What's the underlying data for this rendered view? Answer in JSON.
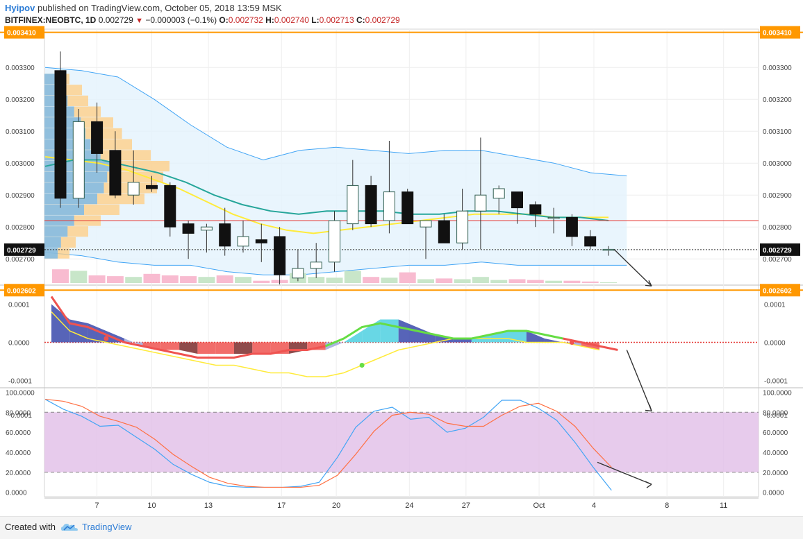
{
  "header": {
    "author": "Hyipov",
    "published": "published on TradingView.com, October 05, 2018 13:59 MSK",
    "symbol": "BITFINEX:NEOBTC, 1D",
    "last": "0.002729",
    "change": "−0.000003 (−0.1%)",
    "o_label": "O:",
    "o_value": "0.002732",
    "h_label": "H:",
    "h_value": "0.002740",
    "l_label": "L:",
    "l_value": "0.002713",
    "c_label": "C:",
    "c_value": "0.002729"
  },
  "footer": {
    "created": "Created with",
    "brand": "TradingView",
    "logo_icon": "tradingview-cloud-icon"
  },
  "colors": {
    "orange_line": "#ff9800",
    "red_line": "#e53935",
    "ma_yellow": "#ffeb3b",
    "ma_teal": "#26a69a",
    "bb_blue": "#42a5f5",
    "bb_fill": "#e3f2fd",
    "vp_blue": "#64b5f6",
    "vp_orange": "#ffcc80",
    "vol_up": "#c8e6c9",
    "vol_down": "#f8bbd0",
    "rsi_band": "#e1bee7",
    "stoch_k": "#42a5f5",
    "stoch_d": "#ff7043"
  },
  "chart_data": [
    {
      "type": "candlestick",
      "pane": "price",
      "x_ticks": [
        "7",
        "10",
        "13",
        "17",
        "20",
        "24",
        "27",
        "Oct",
        "4",
        "8",
        "11"
      ],
      "y_ticks": [
        "0.003300",
        "0.003200",
        "0.003100",
        "0.003000",
        "0.002900",
        "0.002800",
        "0.002700"
      ],
      "ylim": [
        0.00262,
        0.00342
      ],
      "horizontal_levels": [
        {
          "value": 0.00341,
          "label": "0.003410"
        },
        {
          "value": 0.002602,
          "label": "0.002602"
        }
      ],
      "red_level": 0.00282,
      "last_price_label": "0.002729",
      "candles": [
        {
          "o": 0.00329,
          "h": 0.00335,
          "l": 0.00286,
          "c": 0.00289
        },
        {
          "o": 0.00289,
          "h": 0.00317,
          "l": 0.00286,
          "c": 0.00313
        },
        {
          "o": 0.00313,
          "h": 0.00319,
          "l": 0.00297,
          "c": 0.00303
        },
        {
          "o": 0.00304,
          "h": 0.0031,
          "l": 0.00289,
          "c": 0.0029
        },
        {
          "o": 0.0029,
          "h": 0.00304,
          "l": 0.00287,
          "c": 0.00294
        },
        {
          "o": 0.00293,
          "h": 0.00296,
          "l": 0.00291,
          "c": 0.00292
        },
        {
          "o": 0.00293,
          "h": 0.00294,
          "l": 0.00277,
          "c": 0.0028
        },
        {
          "o": 0.00281,
          "h": 0.00282,
          "l": 0.0027,
          "c": 0.00278
        },
        {
          "o": 0.00279,
          "h": 0.00281,
          "l": 0.00272,
          "c": 0.0028
        },
        {
          "o": 0.00281,
          "h": 0.00286,
          "l": 0.00271,
          "c": 0.00274
        },
        {
          "o": 0.00274,
          "h": 0.00282,
          "l": 0.00272,
          "c": 0.00277
        },
        {
          "o": 0.00276,
          "h": 0.00281,
          "l": 0.00269,
          "c": 0.00275
        },
        {
          "o": 0.00277,
          "h": 0.0028,
          "l": 0.00262,
          "c": 0.00265
        },
        {
          "o": 0.00264,
          "h": 0.00273,
          "l": 0.00263,
          "c": 0.00267
        },
        {
          "o": 0.00267,
          "h": 0.00275,
          "l": 0.00264,
          "c": 0.00269
        },
        {
          "o": 0.00269,
          "h": 0.00285,
          "l": 0.00266,
          "c": 0.00282
        },
        {
          "o": 0.00281,
          "h": 0.00301,
          "l": 0.00279,
          "c": 0.00293
        },
        {
          "o": 0.00293,
          "h": 0.00296,
          "l": 0.0028,
          "c": 0.00281
        },
        {
          "o": 0.00282,
          "h": 0.00307,
          "l": 0.00278,
          "c": 0.00291
        },
        {
          "o": 0.00291,
          "h": 0.00292,
          "l": 0.00281,
          "c": 0.00281
        },
        {
          "o": 0.0028,
          "h": 0.00282,
          "l": 0.0027,
          "c": 0.00282
        },
        {
          "o": 0.00282,
          "h": 0.00284,
          "l": 0.00275,
          "c": 0.00275
        },
        {
          "o": 0.00275,
          "h": 0.00292,
          "l": 0.00273,
          "c": 0.00285
        },
        {
          "o": 0.00285,
          "h": 0.00308,
          "l": 0.00273,
          "c": 0.0029
        },
        {
          "o": 0.00289,
          "h": 0.00293,
          "l": 0.00284,
          "c": 0.00292
        },
        {
          "o": 0.00291,
          "h": 0.00291,
          "l": 0.00281,
          "c": 0.00286
        },
        {
          "o": 0.00287,
          "h": 0.00288,
          "l": 0.0028,
          "c": 0.00284
        },
        {
          "o": 0.00283,
          "h": 0.00286,
          "l": 0.00278,
          "c": 0.00283
        },
        {
          "o": 0.00283,
          "h": 0.00284,
          "l": 0.00274,
          "c": 0.00277
        },
        {
          "o": 0.00277,
          "h": 0.00279,
          "l": 0.00273,
          "c": 0.00274
        },
        {
          "o": 0.00273,
          "h": 0.00274,
          "l": 0.00271,
          "c": 0.00273
        }
      ],
      "ma_yellow": [
        0.00302,
        0.00301,
        0.003,
        0.00298,
        0.00295,
        0.00292,
        0.00288,
        0.00284,
        0.00281,
        0.00279,
        0.00278,
        0.00279,
        0.0028,
        0.00281,
        0.00282,
        0.00283,
        0.00284,
        0.00284,
        0.00284,
        0.00283,
        0.00283,
        0.00283
      ],
      "ma_teal": [
        0.00299,
        0.00301,
        0.00301,
        0.00299,
        0.00297,
        0.00294,
        0.0029,
        0.00287,
        0.00285,
        0.00284,
        0.00285,
        0.00285,
        0.00285,
        0.00284,
        0.00284,
        0.00285,
        0.00285,
        0.00284,
        0.00283,
        0.00283,
        0.00282
      ],
      "bb_upper": [
        0.0033,
        0.00329,
        0.00327,
        0.0032,
        0.00312,
        0.00305,
        0.00301,
        0.00304,
        0.00305,
        0.00304,
        0.00303,
        0.00304,
        0.00304,
        0.00302,
        0.003,
        0.00297,
        0.00296
      ],
      "bb_lower": [
        0.00272,
        0.00271,
        0.00269,
        0.00268,
        0.00268,
        0.00266,
        0.00265,
        0.00265,
        0.00266,
        0.00267,
        0.00268,
        0.00268,
        0.00269,
        0.00268,
        0.00268,
        0.00268,
        0.00268
      ],
      "volumes": [
        0.9,
        0.8,
        0.5,
        0.45,
        0.4,
        0.6,
        0.5,
        0.45,
        0.4,
        0.5,
        0.4,
        0.15,
        0.2,
        0.65,
        0.4,
        0.35,
        0.8,
        0.4,
        0.35,
        0.7,
        0.25,
        0.3,
        0.25,
        0.4,
        0.2,
        0.25,
        0.2,
        0.15,
        0.15,
        0.1,
        0.05
      ],
      "forecast_arrow": {
        "from_index": 31,
        "from": 0.00273,
        "to_index": 33,
        "to": 0.00262
      }
    },
    {
      "type": "line",
      "pane": "macd",
      "y_ticks": [
        "0.0001",
        "0.0000",
        "-0.0001",
        "-0.0001"
      ],
      "ylim": [
        -0.00011,
        0.00013
      ],
      "macd": [
        0.00012,
        5e-05,
        4e-05,
        2e-05,
        0.0,
        -1e-05,
        -2e-05,
        -3e-05,
        -4e-05,
        -4e-05,
        -4e-05,
        -3e-05,
        -3e-05,
        -2e-05,
        -2e-05,
        -1e-05,
        1e-05,
        4e-05,
        5e-05,
        4e-05,
        3e-05,
        2e-05,
        1e-05,
        1e-05,
        2e-05,
        3e-05,
        3e-05,
        2e-05,
        1e-05,
        0.0,
        -1e-05,
        -2e-05
      ],
      "signal": [
        8e-05,
        3e-05,
        1e-05,
        0.0,
        -1e-05,
        -2e-05,
        -3e-05,
        -4e-05,
        -5e-05,
        -6e-05,
        -6e-05,
        -7e-05,
        -8e-05,
        -8e-05,
        -9e-05,
        -9e-05,
        -8e-05,
        -6e-05,
        -4e-05,
        -2e-05,
        -1e-05,
        0.0,
        1e-05,
        1e-05,
        1e-05,
        1e-05,
        0.0,
        0.0,
        0.0,
        -1e-05,
        -2e-05
      ],
      "histogram": [
        0.0001,
        6e-05,
        5e-05,
        3e-05,
        1e-05,
        -1e-05,
        -2e-05,
        -2e-05,
        -3e-05,
        -3e-05,
        -3e-05,
        -3e-05,
        -3e-05,
        -3e-05,
        -2e-05,
        -2e-05,
        0.0,
        3e-05,
        6e-05,
        6e-05,
        4e-05,
        2e-05,
        1e-05,
        1e-05,
        2e-05,
        3e-05,
        3e-05,
        1e-05,
        0.0,
        -1e-05,
        -2e-05
      ],
      "zero_line": 0
    },
    {
      "type": "line",
      "pane": "stochastic",
      "y_ticks": [
        "100.0000",
        "80.0000",
        "60.0000",
        "40.0000",
        "20.0000",
        "0.0000"
      ],
      "ylim": [
        -3,
        101
      ],
      "band": [
        20,
        80
      ],
      "k": [
        93,
        83,
        76,
        66,
        67,
        55,
        43,
        28,
        18,
        10,
        6,
        5,
        5,
        5,
        6,
        10,
        35,
        65,
        81,
        85,
        73,
        75,
        60,
        64,
        75,
        92,
        92,
        84,
        72,
        50,
        25,
        2
      ],
      "d": [
        93,
        91,
        86,
        76,
        71,
        65,
        53,
        38,
        26,
        15,
        9,
        6,
        5,
        5,
        5,
        7,
        17,
        38,
        61,
        77,
        80,
        78,
        69,
        66,
        66,
        77,
        86,
        89,
        81,
        66,
        44,
        25
      ],
      "forecast_arrow": {
        "from": 30,
        "to": 8
      }
    }
  ]
}
